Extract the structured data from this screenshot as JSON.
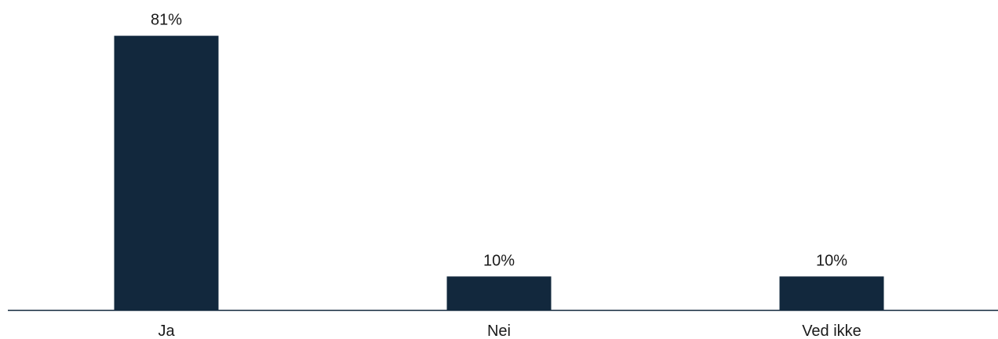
{
  "chart_data": {
    "type": "bar",
    "categories": [
      "Ja",
      "Nei",
      "Ved ikke"
    ],
    "values": [
      81,
      10,
      10
    ],
    "data_labels": [
      "81%",
      "10%",
      "10%"
    ],
    "ylim": [
      0,
      100
    ],
    "grid": false,
    "legend": "none",
    "bar_color": "#12283d",
    "axis_color": "#12283d"
  }
}
